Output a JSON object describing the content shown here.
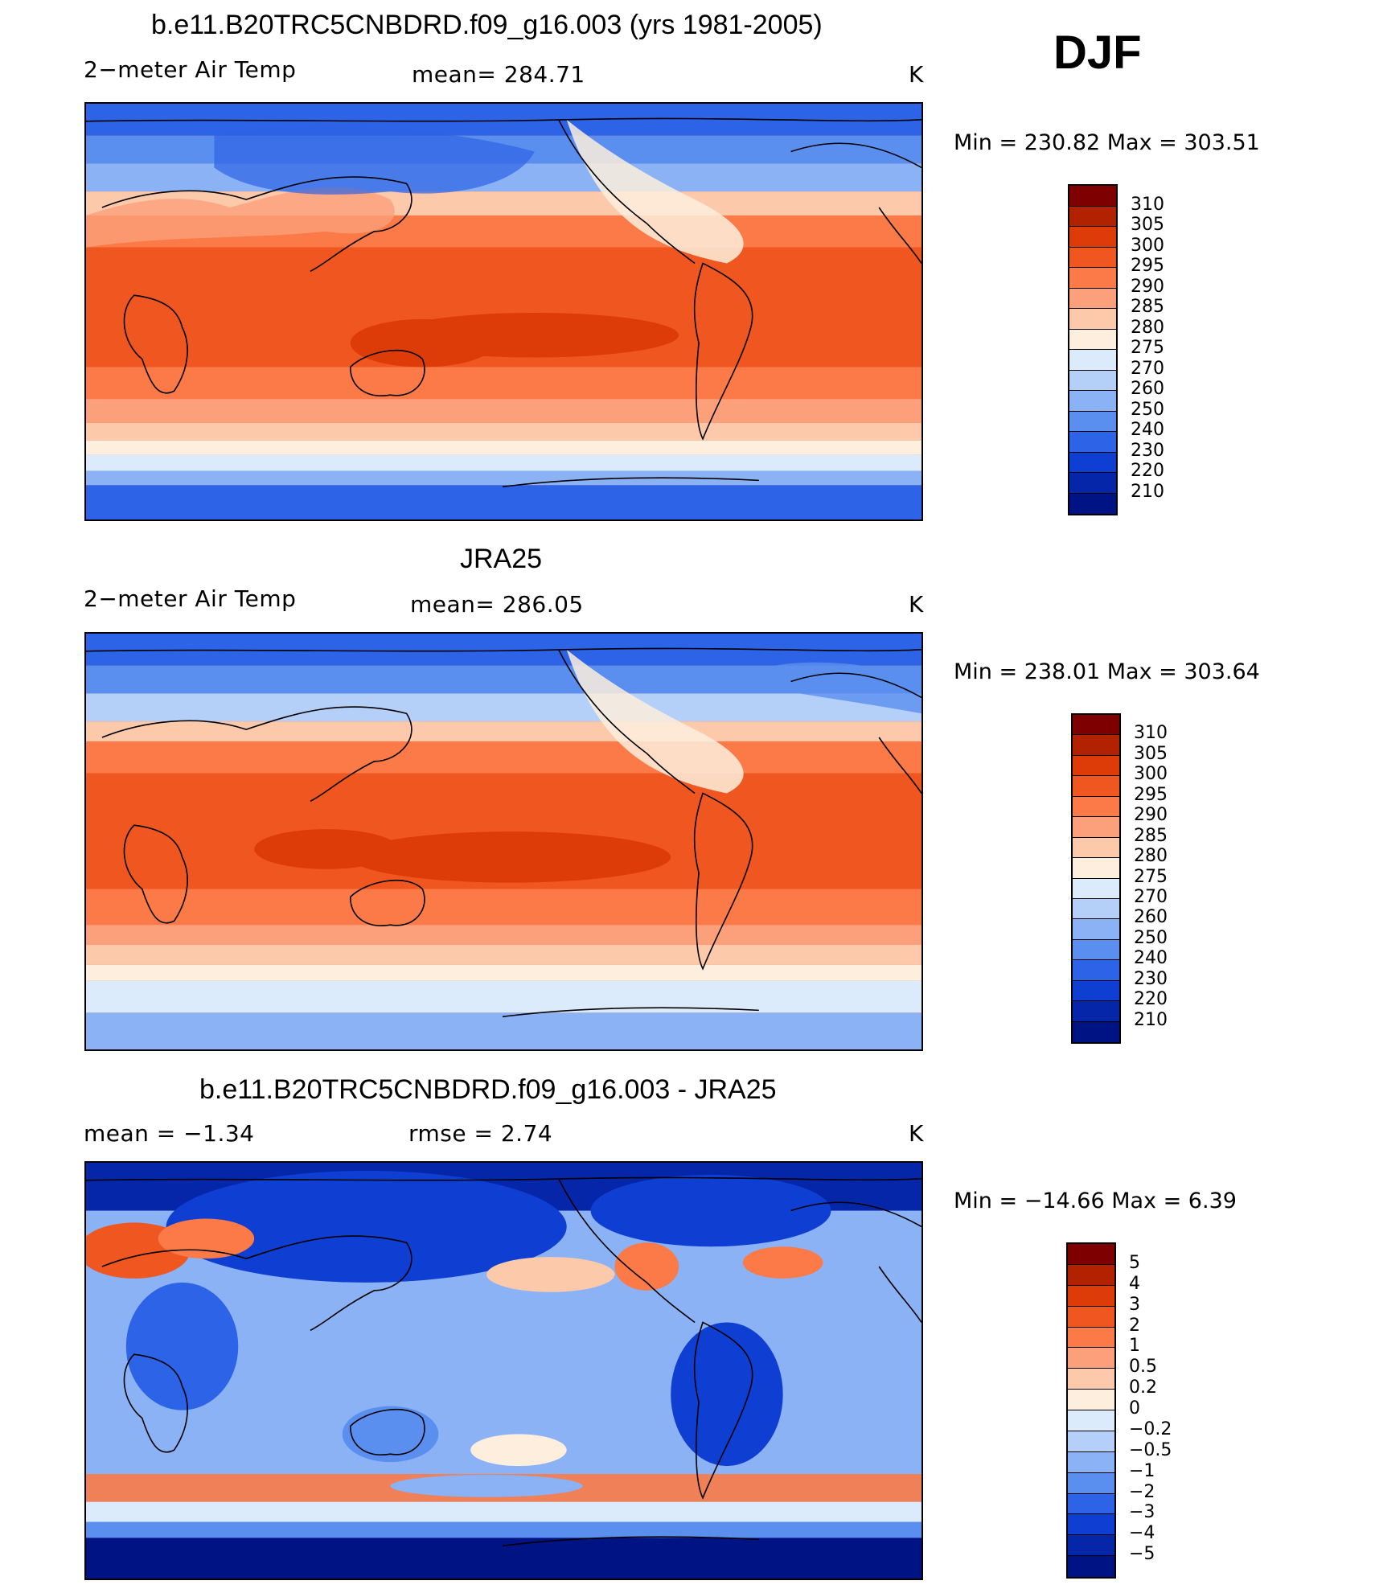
{
  "season": "DJF",
  "panels": [
    {
      "title": "b.e11.B20TRC5CNBDRD.f09_g16.003 (yrs 1981-2005)",
      "left_label": "2−meter Air Temp",
      "mid_label": "mean=  284.71",
      "units": "K",
      "minmax": "Min  =  230.82  Max  =  303.51",
      "colorbar": [
        "310",
        "305",
        "300",
        "295",
        "290",
        "285",
        "280",
        "275",
        "270",
        "260",
        "250",
        "240",
        "230",
        "220",
        "210"
      ]
    },
    {
      "title": "JRA25",
      "left_label": "2−meter Air Temp",
      "mid_label": "mean=  286.05",
      "units": "K",
      "minmax": "Min  =  238.01  Max  =  303.64",
      "colorbar": [
        "310",
        "305",
        "300",
        "295",
        "290",
        "285",
        "280",
        "275",
        "270",
        "260",
        "250",
        "240",
        "230",
        "220",
        "210"
      ]
    },
    {
      "title": "b.e11.B20TRC5CNBDRD.f09_g16.003 - JRA25",
      "left_label": "mean  =    −1.34",
      "mid_label": "rmse  =     2.74",
      "units": "K",
      "minmax": "Min  =  −14.66  Max  =      6.39",
      "colorbar": [
        "5",
        "4",
        "3",
        "2",
        "1",
        "0.5",
        "0.2",
        "0",
        "−0.2",
        "−0.5",
        "−1",
        "−2",
        "−3",
        "−4",
        "−5"
      ]
    }
  ],
  "colors": [
    "#7f0000",
    "#b32200",
    "#dd3b08",
    "#f0561f",
    "#fb7a47",
    "#fca07b",
    "#fdc9ab",
    "#fdeedd",
    "#dcebfb",
    "#b4d0f8",
    "#8ab2f4",
    "#5a8ff0",
    "#2d63e6",
    "#0f3ed2",
    "#0526a8",
    "#001385"
  ]
}
